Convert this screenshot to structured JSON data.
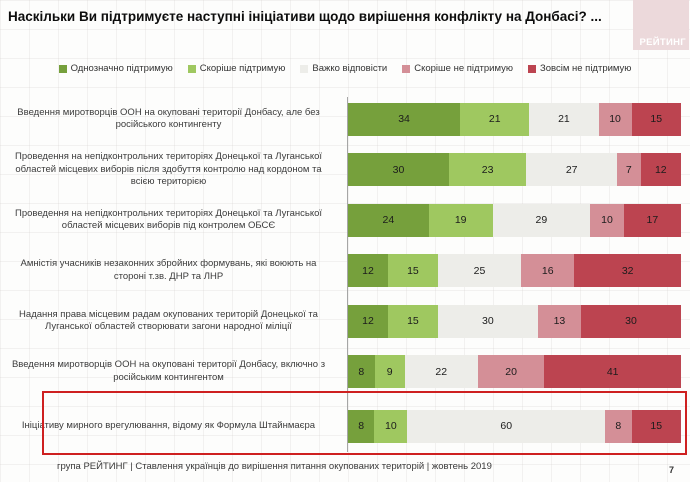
{
  "slide": {
    "title": "Наскільки Ви підтримуєте наступні ініціативи щодо вирішення конфлікту на Донбасі? ...",
    "logo_text": "РЕЙТИНГ",
    "footer_text": "група РЕЙТИНГ | Ставлення українців до вирішення питання окупованих територій  | жовтень  2019",
    "page_number": "7"
  },
  "colors": {
    "strongly_support": "#76A03C",
    "rather_support": "#9FC860",
    "hard_to_say": "#EDEDE9",
    "rather_not_support": "#D48F97",
    "not_support_at_all": "#BC4450",
    "highlight_border": "#CE2020",
    "logo_background": "#ECD9DB"
  },
  "chart_data": {
    "type": "bar",
    "orientation": "horizontal",
    "stacked": true,
    "unit": "percent",
    "xlim": [
      0,
      100
    ],
    "grid": false,
    "legend_position": "top",
    "legend": [
      {
        "key": "strongly-support",
        "label": "Однозначно підтримую",
        "color": "#76A03C"
      },
      {
        "key": "rather-support",
        "label": "Скоріше підтримую",
        "color": "#9FC860"
      },
      {
        "key": "hard-to-say",
        "label": "Важко відповісти",
        "color": "#EDEDE9"
      },
      {
        "key": "rather-not-support",
        "label": "Скоріше не підтримую",
        "color": "#D48F97"
      },
      {
        "key": "not-support-at-all",
        "label": "Зовсім не підтримую",
        "color": "#BC4450"
      }
    ],
    "rows": [
      {
        "label": "Введення миротворців ООН на окуповані території Донбасу, але без російського контингенту",
        "values": [
          34,
          21,
          21,
          10,
          15
        ],
        "highlighted": false
      },
      {
        "label": "Проведення на непідконтрольних територіях Донецької та Луганської областей місцевих виборів після здобуття контролю над кордоном та всією територією",
        "values": [
          30,
          23,
          27,
          7,
          12
        ],
        "highlighted": false
      },
      {
        "label": "Проведення на непідконтрольних територіях Донецької та Луганської областей місцевих виборів під контролем ОБСЄ",
        "values": [
          24,
          19,
          29,
          10,
          17
        ],
        "highlighted": false
      },
      {
        "label": "Амністія учасників незаконних збройних формувань, які воюють на стороні т.зв. ДНР та ЛНР",
        "values": [
          12,
          15,
          25,
          16,
          32
        ],
        "highlighted": false
      },
      {
        "label": "Надання права місцевим радам окупованих територій Донецької та Луганської областей створювати загони народної міліції",
        "values": [
          12,
          15,
          30,
          13,
          30
        ],
        "highlighted": false
      },
      {
        "label": "Введення миротворців ООН на окуповані території Донбасу, включно з російським контингентом",
        "values": [
          8,
          9,
          22,
          20,
          41
        ],
        "highlighted": false
      },
      {
        "label": "Ініціативу мирного врегулювання, відому як Формула Штайнмаєра",
        "values": [
          8,
          10,
          60,
          8,
          15
        ],
        "highlighted": true
      }
    ]
  }
}
